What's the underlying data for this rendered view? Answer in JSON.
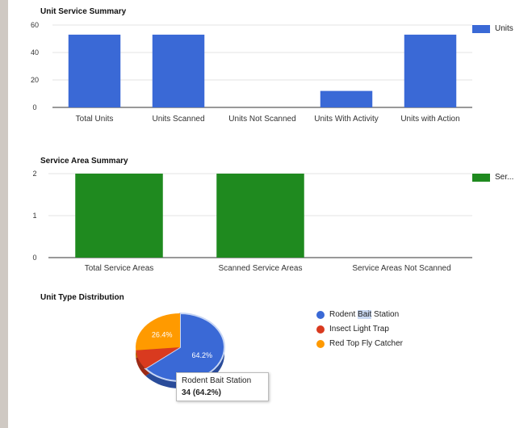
{
  "chart_data": [
    {
      "type": "bar",
      "title": "Unit Service Summary",
      "categories": [
        "Total Units",
        "Units Scanned",
        "Units Not Scanned",
        "Units With Activity",
        "Units with Action"
      ],
      "series": [
        {
          "name": "Units",
          "values": [
            53,
            53,
            0,
            12,
            53
          ],
          "color": "#3a69d6"
        }
      ],
      "yticks": [
        "60",
        "40",
        "20",
        "0"
      ],
      "ylim": [
        0,
        60
      ],
      "grid": true,
      "legend": "right"
    },
    {
      "type": "bar",
      "title": "Service Area Summary",
      "categories": [
        "Total Service Areas",
        "Scanned Service Areas",
        "Service Areas Not Scanned"
      ],
      "series": [
        {
          "name": "Ser...",
          "values": [
            2,
            2,
            0
          ],
          "color": "#1f8a1f"
        }
      ],
      "yticks": [
        "2",
        "1",
        "0"
      ],
      "ylim": [
        0,
        2
      ],
      "grid": true,
      "legend": "right"
    },
    {
      "type": "pie",
      "title": "Unit Type Distribution",
      "slices": [
        {
          "name": "Rodent Bait Station",
          "value": 64.2,
          "label": "64.2%",
          "color": "#3a69d6"
        },
        {
          "name": "Insect Light Trap",
          "value": 9.4,
          "label": "",
          "color": "#d93a1f"
        },
        {
          "name": "Red Top Fly Catcher",
          "value": 26.4,
          "label": "26.4%",
          "color": "#ff9a00"
        }
      ],
      "legend": "right"
    }
  ],
  "legend_labels": {
    "pie_1_pre": "Rodent ",
    "pie_1_hl": "Bait",
    "pie_1_post": " Station",
    "pie_2": "Insect Light Trap",
    "pie_3": "Red Top Fly Catcher"
  },
  "tooltip": {
    "name": "Rodent Bait Station",
    "value": "34 (64.2%)"
  }
}
